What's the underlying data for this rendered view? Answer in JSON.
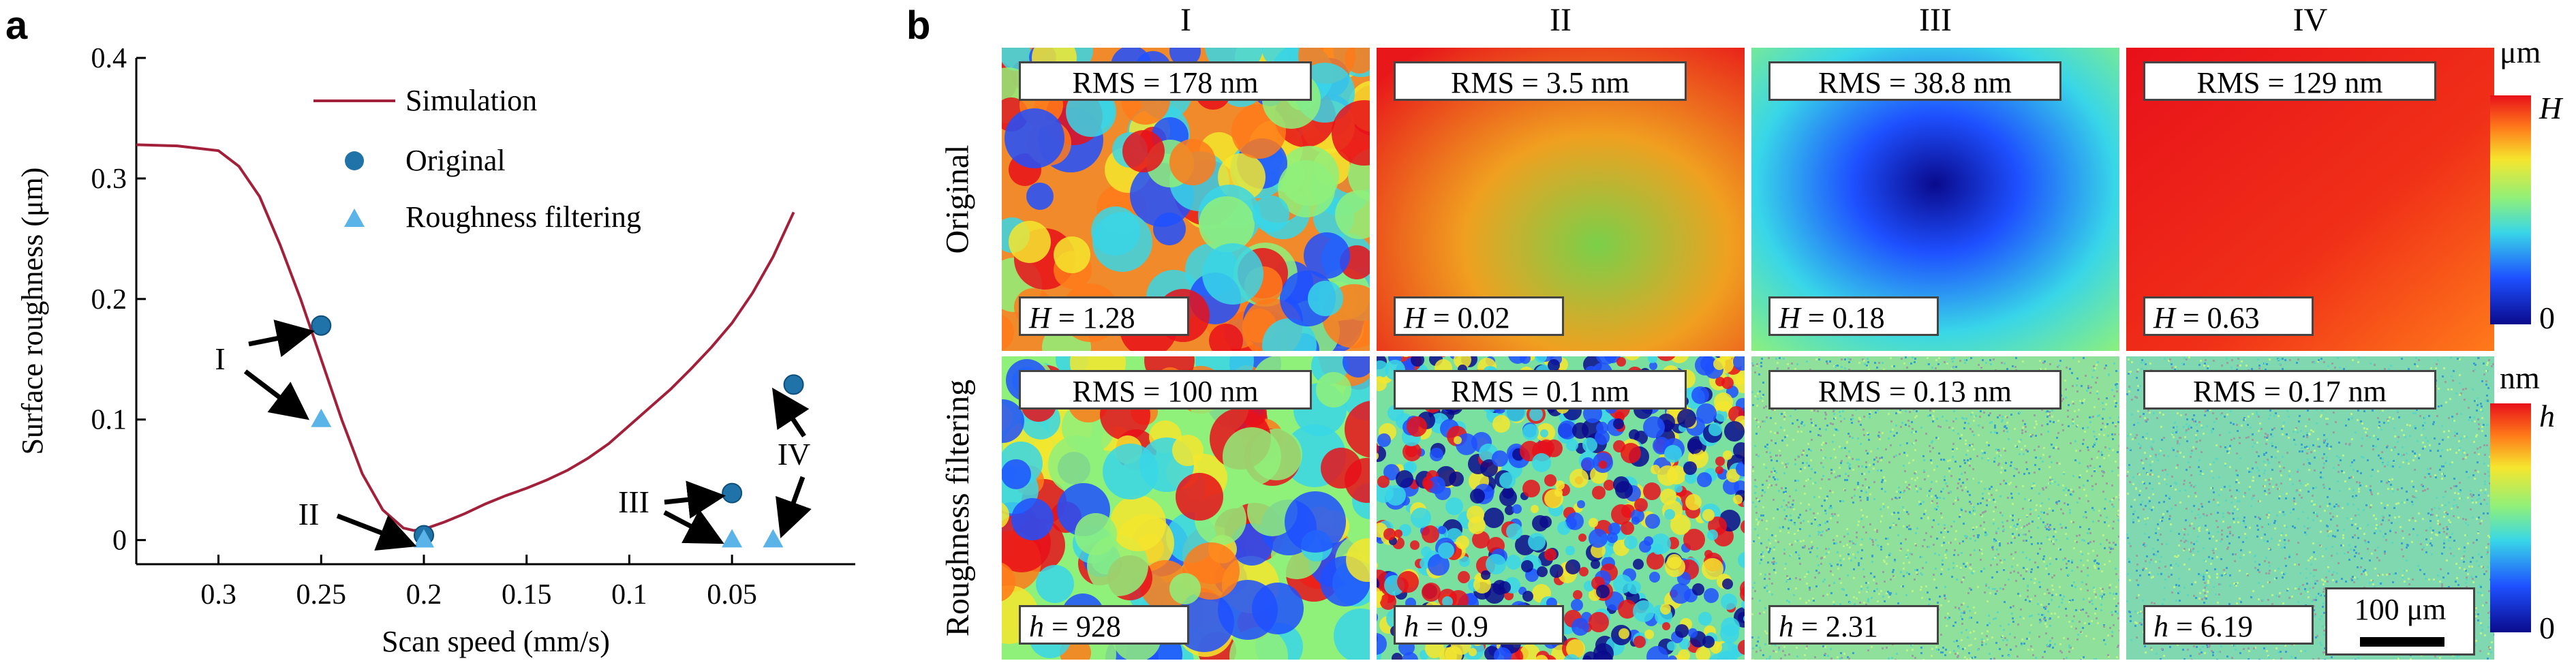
{
  "panel_a_letter": "a",
  "panel_b_letter": "b",
  "chart_data": {
    "type": "line",
    "title": "",
    "xlabel": "Scan speed (mm/s)",
    "ylabel": "Surface roughness (μm)",
    "xlim": [
      0.34,
      -0.01
    ],
    "ylim": [
      -0.02,
      0.4
    ],
    "x_reversed": true,
    "xticks": [
      0.3,
      0.25,
      0.2,
      0.15,
      0.1,
      0.05
    ],
    "yticks": [
      0,
      0.1,
      0.2,
      0.3,
      0.4
    ],
    "series": [
      {
        "name": "Simulation",
        "style": "line",
        "color": "#a3203b",
        "x": [
          0.34,
          0.32,
          0.3,
          0.29,
          0.28,
          0.27,
          0.26,
          0.25,
          0.24,
          0.23,
          0.22,
          0.21,
          0.205,
          0.2,
          0.19,
          0.18,
          0.17,
          0.16,
          0.15,
          0.14,
          0.13,
          0.12,
          0.11,
          0.1,
          0.09,
          0.08,
          0.07,
          0.06,
          0.05,
          0.04,
          0.03,
          0.02
        ],
        "y": [
          0.328,
          0.327,
          0.323,
          0.31,
          0.285,
          0.245,
          0.2,
          0.15,
          0.1,
          0.055,
          0.025,
          0.01,
          0.008,
          0.009,
          0.015,
          0.022,
          0.03,
          0.037,
          0.043,
          0.05,
          0.058,
          0.068,
          0.08,
          0.095,
          0.11,
          0.125,
          0.142,
          0.16,
          0.18,
          0.205,
          0.235,
          0.272
        ]
      },
      {
        "name": "Original",
        "style": "scatter",
        "marker": "circle",
        "color": "#1f73a8",
        "x": [
          0.25,
          0.2,
          0.05,
          0.02
        ],
        "y": [
          0.178,
          0.004,
          0.039,
          0.129
        ]
      },
      {
        "name": "Roughness filtering",
        "style": "scatter",
        "marker": "triangle",
        "color": "#5ab4e8",
        "x": [
          0.25,
          0.2,
          0.05,
          0.03
        ],
        "y": [
          0.1,
          0.0001,
          0.00013,
          0.00017
        ]
      }
    ],
    "annotations": [
      {
        "text": "I",
        "targets": [
          "original@0.25",
          "filtered@0.25"
        ]
      },
      {
        "text": "II",
        "targets": [
          "points@0.20"
        ]
      },
      {
        "text": "III",
        "targets": [
          "original@0.05",
          "filtered@0.05"
        ]
      },
      {
        "text": "IV",
        "targets": [
          "original@0.02",
          "filtered@0.03"
        ]
      }
    ],
    "legend_position": "top-center"
  },
  "panel_b": {
    "columns": [
      "I",
      "II",
      "III",
      "IV"
    ],
    "rows": [
      {
        "label": "Original",
        "unit": "μm",
        "cbar_max": "H",
        "cbar_min": "0",
        "tiles": [
          {
            "rms": "RMS = 178 nm",
            "var": "H",
            "value": "= 1.28"
          },
          {
            "rms": "RMS = 3.5 nm",
            "var": "H",
            "value": "= 0.02"
          },
          {
            "rms": "RMS = 38.8 nm",
            "var": "H",
            "value": "= 0.18"
          },
          {
            "rms": "RMS = 129 nm",
            "var": "H",
            "value": "= 0.63"
          }
        ]
      },
      {
        "label": "Roughness filtering",
        "unit": "nm",
        "cbar_max": "h",
        "cbar_min": "0",
        "tiles": [
          {
            "rms": "RMS = 100 nm",
            "var": "h",
            "value": "= 928"
          },
          {
            "rms": "RMS = 0.1 nm",
            "var": "h",
            "value": "= 0.9"
          },
          {
            "rms": "RMS = 0.13 nm",
            "var": "h",
            "value": "= 2.31"
          },
          {
            "rms": "RMS = 0.17 nm",
            "var": "h",
            "value": "= 6.19"
          }
        ]
      }
    ],
    "scale_bar": "100 μm"
  }
}
